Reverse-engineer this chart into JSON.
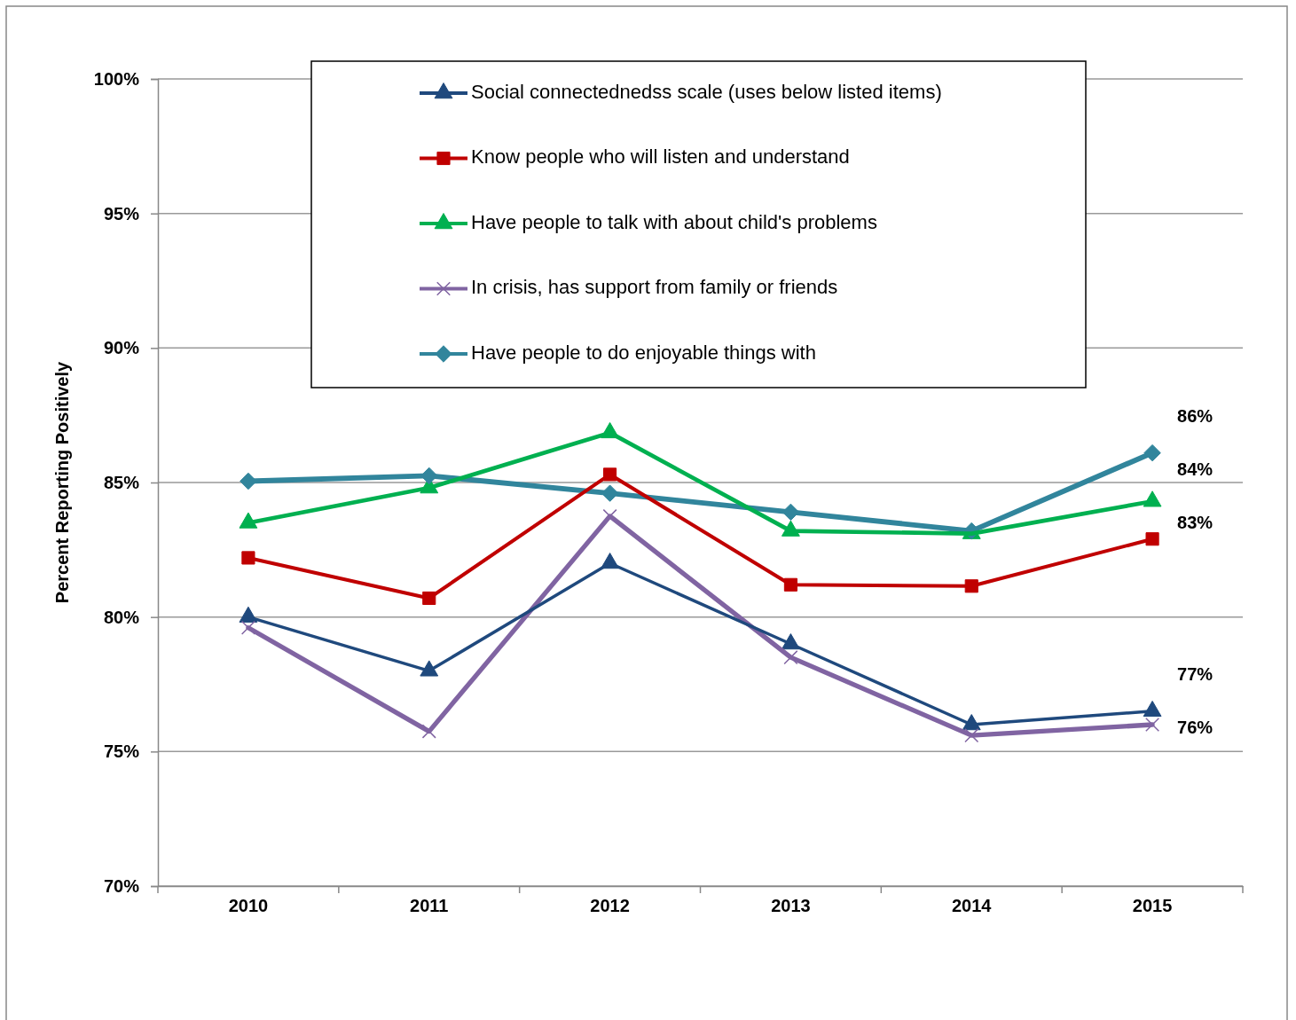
{
  "chart_data": {
    "type": "line",
    "ylabel": "Percent Reporting Positively",
    "categories": [
      "2010",
      "2011",
      "2012",
      "2013",
      "2014",
      "2015"
    ],
    "ylim": [
      70,
      100
    ],
    "yticks": [
      {
        "value": 70,
        "label": "70%"
      },
      {
        "value": 75,
        "label": "75%"
      },
      {
        "value": 80,
        "label": "80%"
      },
      {
        "value": 85,
        "label": "85%"
      },
      {
        "value": 90,
        "label": "90%"
      },
      {
        "value": 95,
        "label": "95%"
      },
      {
        "value": 100,
        "label": "100%"
      }
    ],
    "grid": "y",
    "legend": "top",
    "line_style": "solid",
    "series": [
      {
        "name": "Social connectednedss scale (uses below listed items)",
        "color": "#1f497d",
        "marker": "triangle",
        "values": [
          80.0,
          78.0,
          82.0,
          79.0,
          76.0,
          76.5
        ],
        "value_labels": [
          null,
          null,
          null,
          null,
          null,
          "77%"
        ]
      },
      {
        "name": "Know people who will listen and understand",
        "color": "#c00000",
        "marker": "square",
        "values": [
          82.2,
          80.7,
          85.3,
          81.2,
          81.15,
          82.9
        ],
        "value_labels": [
          null,
          null,
          null,
          null,
          null,
          "83%"
        ]
      },
      {
        "name": "Have people to talk with about child's problems",
        "color": "#00b050",
        "marker": "triangle",
        "values": [
          83.5,
          84.8,
          86.85,
          83.2,
          83.1,
          84.3
        ],
        "value_labels": [
          null,
          null,
          null,
          null,
          null,
          "84%"
        ]
      },
      {
        "name": "In crisis, has support from family or friends",
        "color": "#8064a2",
        "marker": "cross",
        "values": [
          79.6,
          75.75,
          83.75,
          78.5,
          75.6,
          76.0
        ],
        "value_labels": [
          null,
          null,
          null,
          null,
          null,
          "76%"
        ]
      },
      {
        "name": "Have people to do enjoyable things with",
        "color": "#31859c",
        "marker": "diamond",
        "values": [
          85.05,
          85.25,
          84.6,
          83.9,
          83.2,
          86.1
        ],
        "value_labels": [
          null,
          null,
          null,
          null,
          null,
          "86%"
        ]
      }
    ]
  }
}
